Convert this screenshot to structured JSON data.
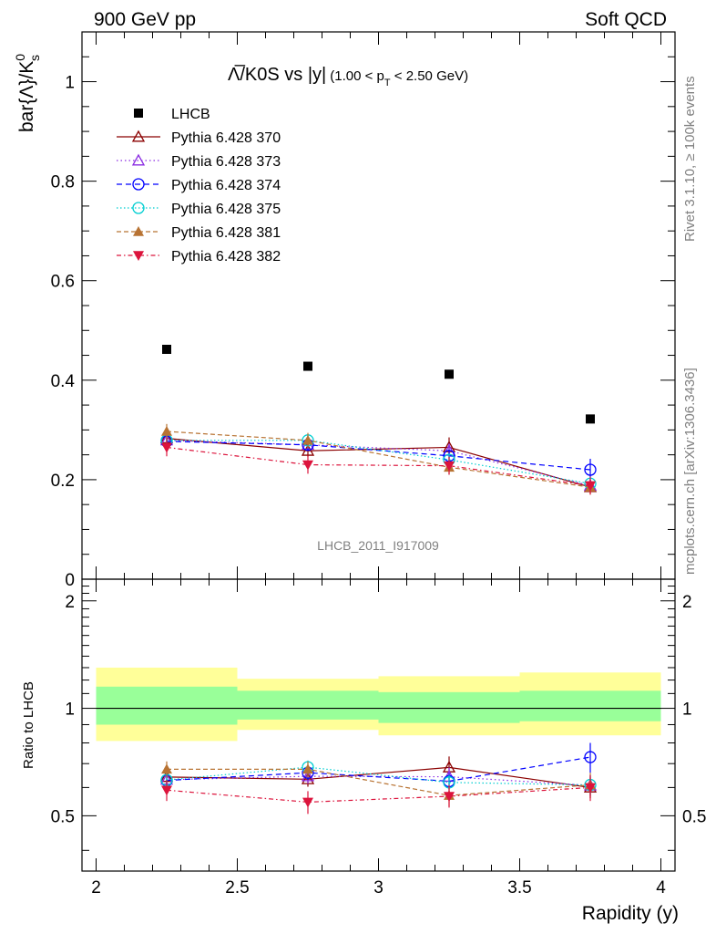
{
  "header": {
    "left": "900 GeV pp",
    "right": "Soft QCD"
  },
  "side_text": {
    "top": "Rivet 3.1.10, ≥ 100k events",
    "bottom": "mcplots.cern.ch [arXiv:1306.3436]"
  },
  "watermark": "LHCB_2011_I917009",
  "colors": {
    "LHCB": "#000000",
    "370": "#8b0000",
    "373": "#8a2be2",
    "374": "#0000ff",
    "375": "#00ced1",
    "381": "#b87333",
    "382": "#dc143c",
    "band_inner": "#99ff99",
    "band_outer": "#ffff99"
  },
  "chart_data": [
    {
      "type": "scatter",
      "title": "Λ̅/K0S vs |y|",
      "title_sub": "(1.00 < p",
      "title_sub_idx": "T",
      "title_sub_end": " < 2.50 GeV)",
      "ylabel": "bar{Λ}/K",
      "ylabel_sup": "0",
      "ylabel_sub": "s",
      "xlim": [
        1.95,
        4.05
      ],
      "ylim": [
        0,
        1.1
      ],
      "yticks": [
        0,
        0.2,
        0.4,
        0.6,
        0.8,
        1
      ],
      "ytick_labels": [
        "0",
        "0.2",
        "0.4",
        "0.6",
        "0.8",
        "1"
      ],
      "grid": false,
      "legend_position": "top-left",
      "x": [
        2.25,
        2.75,
        3.25,
        3.75
      ],
      "reference": {
        "name": "LHCB",
        "values": [
          0.462,
          0.428,
          0.412,
          0.322
        ]
      },
      "series": [
        {
          "name": "Pythia 6.428 370",
          "values": [
            0.283,
            0.258,
            0.265,
            0.185
          ],
          "err": [
            0.012,
            0.012,
            0.02,
            0.012
          ]
        },
        {
          "name": "Pythia 6.428 373",
          "values": [
            0.279,
            0.27,
            0.258,
            0.188
          ],
          "err": [
            0.012,
            0.012,
            0.015,
            0.012
          ]
        },
        {
          "name": "Pythia 6.428 374",
          "values": [
            0.277,
            0.27,
            0.248,
            0.22
          ],
          "err": [
            0.012,
            0.012,
            0.012,
            0.022
          ]
        },
        {
          "name": "Pythia 6.428 375",
          "values": [
            0.279,
            0.279,
            0.24,
            0.192
          ],
          "err": [
            0.012,
            0.012,
            0.012,
            0.012
          ]
        },
        {
          "name": "Pythia 6.428 381",
          "values": [
            0.297,
            0.279,
            0.225,
            0.185
          ],
          "err": [
            0.015,
            0.015,
            0.015,
            0.015
          ]
        },
        {
          "name": "Pythia 6.428 382",
          "values": [
            0.265,
            0.23,
            0.228,
            0.188
          ],
          "err": [
            0.018,
            0.018,
            0.018,
            0.018
          ]
        }
      ]
    },
    {
      "type": "scatter",
      "ylabel": "Ratio to LHCB",
      "xlabel": "Rapidity (y)",
      "xlim": [
        1.95,
        4.05
      ],
      "ylim": [
        0.35,
        2.3
      ],
      "xticks": [
        2,
        2.5,
        3,
        3.5,
        4
      ],
      "xtick_labels": [
        "2",
        "2.5",
        "3",
        "3.5",
        "4"
      ],
      "yticks": [
        0.5,
        1,
        2
      ],
      "ytick_labels": [
        "0.5",
        "1",
        "2"
      ],
      "x": [
        2.25,
        2.75,
        3.25,
        3.75
      ],
      "bins": [
        [
          2.0,
          2.5
        ],
        [
          2.5,
          3.0
        ],
        [
          3.0,
          3.5
        ],
        [
          3.5,
          4.0
        ]
      ],
      "band_inner": [
        [
          0.9,
          1.15
        ],
        [
          0.93,
          1.12
        ],
        [
          0.91,
          1.11
        ],
        [
          0.92,
          1.12
        ]
      ],
      "band_outer": [
        [
          0.81,
          1.3
        ],
        [
          0.87,
          1.21
        ],
        [
          0.84,
          1.23
        ],
        [
          0.84,
          1.26
        ]
      ],
      "series": [
        {
          "name": "Pythia 6.428 370",
          "values": [
            0.642,
            0.633,
            0.683,
            0.6
          ],
          "err": [
            0.03,
            0.03,
            0.05,
            0.04
          ]
        },
        {
          "name": "Pythia 6.428 373",
          "values": [
            0.631,
            0.645,
            0.643,
            0.608
          ],
          "err": [
            0.03,
            0.03,
            0.04,
            0.04
          ]
        },
        {
          "name": "Pythia 6.428 374",
          "values": [
            0.628,
            0.66,
            0.625,
            0.73
          ],
          "err": [
            0.03,
            0.03,
            0.03,
            0.07
          ]
        },
        {
          "name": "Pythia 6.428 375",
          "values": [
            0.63,
            0.684,
            0.62,
            0.61
          ],
          "err": [
            0.03,
            0.03,
            0.03,
            0.04
          ]
        },
        {
          "name": "Pythia 6.428 381",
          "values": [
            0.675,
            0.675,
            0.57,
            0.61
          ],
          "err": [
            0.035,
            0.035,
            0.04,
            0.05
          ]
        },
        {
          "name": "Pythia 6.428 382",
          "values": [
            0.59,
            0.546,
            0.567,
            0.6
          ],
          "err": [
            0.04,
            0.04,
            0.04,
            0.05
          ]
        }
      ]
    }
  ]
}
